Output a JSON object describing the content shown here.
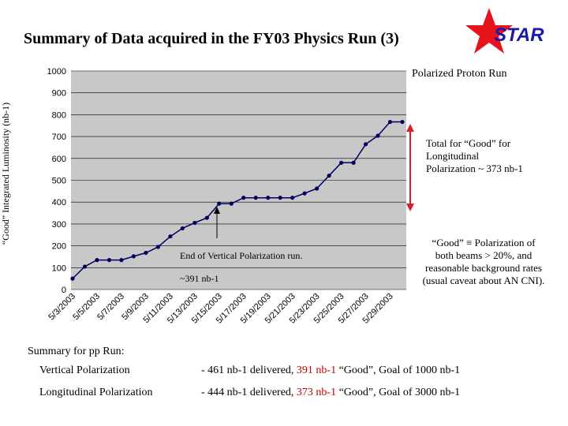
{
  "title": "Summary of Data acquired in the FY03 Physics Run (3)",
  "logo": {
    "text": "STAR",
    "icon": "red-star-icon",
    "star_color": "#e8141c",
    "text_color": "#1a1aa6"
  },
  "chart_data": {
    "type": "line",
    "ylabel": "“Good” Integrated Luminosity (nb-1)",
    "ylim": [
      0,
      1000
    ],
    "yticks": [
      "0",
      "100",
      "200",
      "300",
      "400",
      "500",
      "600",
      "700",
      "800",
      "900",
      "1000"
    ],
    "grid": true,
    "xtick_labels": [
      "5/3/2003",
      "5/5/2003",
      "5/7/2003",
      "5/9/2003",
      "5/11/2003",
      "5/13/2003",
      "5/15/2003",
      "5/17/2003",
      "5/19/2003",
      "5/21/2003",
      "5/23/2003",
      "5/25/2003",
      "5/27/2003",
      "5/29/2003"
    ],
    "series": [
      {
        "color": "#00005f",
        "values": [
          50,
          105,
          135,
          135,
          135,
          152,
          168,
          195,
          243,
          280,
          305,
          328,
          393,
          393,
          420,
          420,
          420,
          420,
          420,
          440,
          462,
          521,
          580,
          580,
          665,
          704,
          767,
          767
        ]
      }
    ]
  },
  "annotations": {
    "run_label": "Polarized Proton Run",
    "total_lines": [
      "Total for “Good” for",
      "Longitudinal",
      "Polarization ~ 373 nb-1"
    ],
    "good_def_lines": [
      "“Good” ≡ Polarization of",
      "both beams > 20%, and",
      "reasonable background rates",
      "(usual caveat about AN CNI)."
    ],
    "end_vertical": "End of Vertical Polarization run.",
    "vertical_391": "~391 nb-1",
    "arrow_color": "#d81e2a"
  },
  "summary": {
    "heading": "Summary for pp Run:",
    "rows": [
      {
        "label": "Vertical Polarization",
        "prefix": "- 461 nb-1 delivered, ",
        "good": "391 nb-1",
        "suffix": " “Good”, Goal of 1000 nb-1"
      },
      {
        "label": "Longitudinal Polarization",
        "prefix": "- 444 nb-1 delivered, ",
        "good": "373 nb-1",
        "suffix": " “Good”, Goal of 3000 nb-1"
      }
    ]
  }
}
